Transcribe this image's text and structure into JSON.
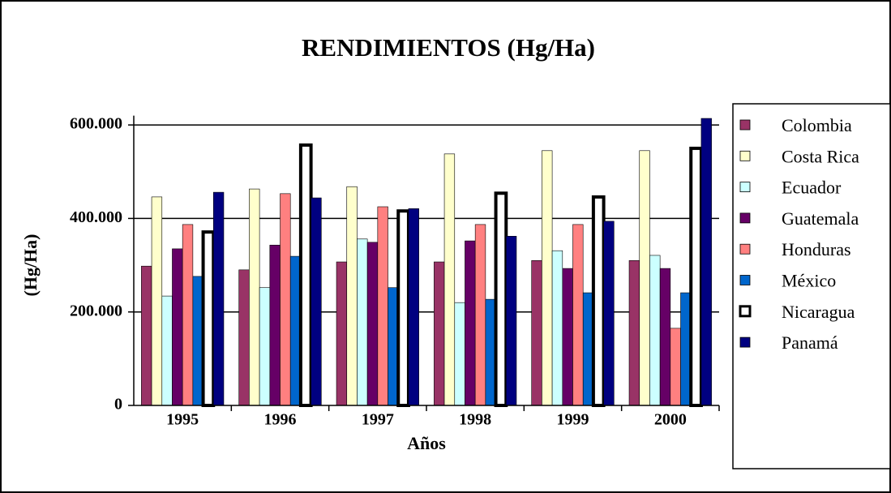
{
  "chart_data": {
    "type": "bar",
    "title": "RENDIMIENTOS (Hg/Ha)",
    "x_label": "Años",
    "y_label": "(Hg/Ha)",
    "categories": [
      "1995",
      "1996",
      "1997",
      "1998",
      "1999",
      "2000"
    ],
    "series": [
      {
        "name": "Colombia",
        "color": "#993366",
        "values": [
          298000,
          290000,
          307000,
          307000,
          310000,
          310000
        ]
      },
      {
        "name": "Costa Rica",
        "color": "#FFFFCC",
        "values": [
          446000,
          463000,
          468000,
          538000,
          545000,
          545000
        ]
      },
      {
        "name": "Ecuador",
        "color": "#CCFFFF",
        "values": [
          234000,
          252000,
          356000,
          220000,
          331000,
          321000
        ]
      },
      {
        "name": "Guatemala",
        "color": "#660066",
        "values": [
          335000,
          343000,
          349000,
          352000,
          293000,
          293000
        ]
      },
      {
        "name": "Honduras",
        "color": "#FF8080",
        "values": [
          387000,
          453000,
          425000,
          387000,
          387000,
          165000
        ]
      },
      {
        "name": "México",
        "color": "#0066CC",
        "values": [
          276000,
          319000,
          252000,
          227000,
          241000,
          241000
        ]
      },
      {
        "name": "Nicaragua",
        "color": "#FFFFFF",
        "edge_width": 4,
        "values": [
          371000,
          557000,
          416000,
          454000,
          446000,
          550000
        ]
      },
      {
        "name": "Panamá",
        "color": "#000080",
        "values": [
          456000,
          444000,
          421000,
          362000,
          394000,
          614000
        ]
      }
    ],
    "ylim": [
      0,
      620000
    ],
    "yticks": [
      0,
      {
        "value": 200000,
        "label": "200.000"
      },
      {
        "value": 400000,
        "label": "400.000"
      },
      {
        "value": 600000,
        "label": "600.000"
      }
    ],
    "grid": true,
    "legend": "right"
  }
}
